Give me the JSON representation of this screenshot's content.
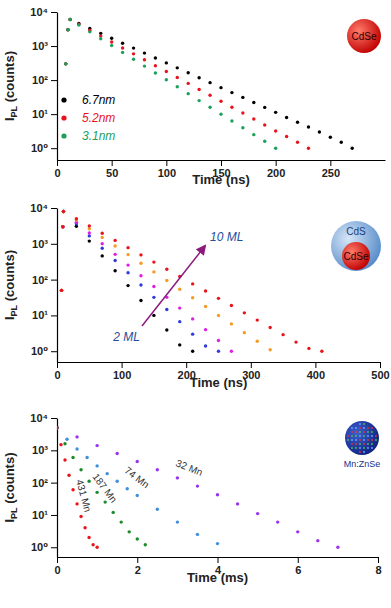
{
  "chart_data": [
    {
      "type": "scatter",
      "log": "y",
      "marker": "circle",
      "legend": "lower left",
      "xlabel": "Time (ns)",
      "ylabel": "IPL (counts)",
      "inset_labels": [
        "CdSe"
      ],
      "xlim": [
        0,
        300
      ],
      "xticks": [
        0,
        50,
        100,
        150,
        200,
        250
      ],
      "ylim": [
        0.45,
        10000
      ],
      "yticks": [
        {
          "value": 1,
          "label": "10⁰"
        },
        {
          "value": 10,
          "label": "10¹"
        },
        {
          "value": 100,
          "label": "10²"
        },
        {
          "value": 1000,
          "label": "10³"
        },
        {
          "value": 10000,
          "label": "10⁴"
        }
      ],
      "series": [
        {
          "name": "6.7nm",
          "color": "#000000",
          "x": [
            8,
            10,
            12,
            20,
            30,
            40,
            50,
            60,
            70,
            80,
            90,
            100,
            110,
            120,
            130,
            140,
            150,
            160,
            170,
            180,
            190,
            200,
            210,
            220,
            230,
            240,
            250,
            260,
            270
          ],
          "values": [
            300,
            3000,
            6000,
            4600,
            3290,
            2360,
            1690,
            1210,
            870,
            620,
            445,
            320,
            229,
            164,
            117,
            84,
            60,
            43,
            31,
            22,
            15.8,
            11.3,
            8,
            5.8,
            4.2,
            3,
            2.1,
            1.5,
            1
          ]
        },
        {
          "name": "5.2nm",
          "color": "#e8141c",
          "x": [
            8,
            10,
            12,
            20,
            30,
            40,
            50,
            60,
            70,
            80,
            90,
            100,
            110,
            120,
            130,
            140,
            150,
            160,
            170,
            180,
            190,
            200,
            210,
            220,
            230
          ],
          "values": [
            300,
            3000,
            6000,
            4360,
            2920,
            1960,
            1310,
            880,
            590,
            395,
            265,
            178,
            119,
            80,
            53,
            36,
            24,
            16,
            10.8,
            7.2,
            4.8,
            3.2,
            2.2,
            1.5,
            1
          ]
        },
        {
          "name": "3.1nm",
          "color": "#1aa05a",
          "x": [
            8,
            10,
            12,
            20,
            30,
            40,
            50,
            60,
            70,
            80,
            90,
            100,
            110,
            120,
            130,
            140,
            150,
            160,
            170,
            180,
            190,
            200
          ],
          "values": [
            300,
            3000,
            6000,
            4140,
            2610,
            1640,
            1035,
            650,
            410,
            258,
            162,
            102,
            64,
            40,
            25,
            16,
            10,
            6.3,
            4,
            2.5,
            1.6,
            1
          ]
        }
      ]
    },
    {
      "type": "scatter",
      "log": "y",
      "marker": "circle",
      "xlabel": "Time (ns)",
      "ylabel": "IPL (counts)",
      "inset_labels": [
        "CdS",
        "CdSe"
      ],
      "annotations": [
        "2 ML",
        "10 ML"
      ],
      "xlim": [
        0,
        500
      ],
      "xticks": [
        0,
        100,
        200,
        300,
        400,
        500
      ],
      "ylim": [
        0.5,
        10000
      ],
      "yticks": [
        {
          "value": 1,
          "label": "10⁰"
        },
        {
          "value": 10,
          "label": "10¹"
        },
        {
          "value": 100,
          "label": "10²"
        },
        {
          "value": 1000,
          "label": "10³"
        },
        {
          "value": 10000,
          "label": "10⁴"
        }
      ],
      "series": [
        {
          "color": "#000000",
          "x": [
            7,
            9,
            10,
            30,
            50,
            70,
            90,
            110,
            130,
            150,
            170,
            190,
            210
          ],
          "values": [
            50,
            3000,
            8000,
            3090,
            1190,
            459,
            177,
            68,
            26,
            10,
            3.9,
            1.5,
            1
          ]
        },
        {
          "color": "#2e3cdc",
          "x": [
            7,
            9,
            10,
            30,
            50,
            70,
            90,
            110,
            130,
            150,
            170,
            190,
            210,
            230,
            250
          ],
          "values": [
            50,
            3000,
            8000,
            3640,
            1660,
            755,
            343,
            156,
            71,
            32,
            14.7,
            6.7,
            3,
            1.4,
            1
          ]
        },
        {
          "color": "#e020e0",
          "x": [
            7,
            9,
            10,
            30,
            50,
            70,
            90,
            110,
            130,
            150,
            170,
            190,
            210,
            230,
            250,
            270
          ],
          "values": [
            50,
            3000,
            8000,
            4010,
            2010,
            1010,
            507,
            254,
            128,
            64,
            32,
            16,
            8,
            4,
            2,
            1
          ]
        },
        {
          "color": "#f59a23",
          "x": [
            7,
            9,
            10,
            30,
            50,
            70,
            90,
            110,
            130,
            150,
            170,
            190,
            210,
            230,
            250,
            270,
            290,
            310,
            330
          ],
          "values": [
            50,
            3000,
            8000,
            4590,
            2640,
            1510,
            870,
            500,
            286,
            164,
            94,
            54,
            31,
            17.7,
            10,
            5.8,
            3.3,
            1.9,
            1.1
          ]
        },
        {
          "color": "#e8141c",
          "x": [
            7,
            9,
            10,
            30,
            50,
            70,
            90,
            110,
            130,
            150,
            170,
            190,
            210,
            230,
            250,
            270,
            290,
            310,
            330,
            350,
            370,
            390,
            410
          ],
          "values": [
            50,
            3000,
            8000,
            5020,
            3160,
            1980,
            1245,
            780,
            490,
            308,
            194,
            122,
            76,
            48,
            30,
            19,
            11.8,
            7.4,
            4.6,
            2.9,
            1.8,
            1.2,
            1
          ]
        }
      ]
    },
    {
      "type": "scatter",
      "log": "y",
      "marker": "circle",
      "xlabel": "Time (ms)",
      "ylabel": "IPL (counts)",
      "inset_labels": [
        "Mn:ZnSe"
      ],
      "xlim": [
        0,
        8
      ],
      "xticks": [
        0,
        2,
        4,
        6,
        8
      ],
      "ylim": [
        0.5,
        10000
      ],
      "yticks": [
        {
          "value": 1,
          "label": "10⁰"
        },
        {
          "value": 10,
          "label": "10¹"
        },
        {
          "value": 100,
          "label": "10²"
        },
        {
          "value": 1000,
          "label": "10³"
        },
        {
          "value": 10000,
          "label": "10⁴"
        }
      ],
      "series": [
        {
          "name": "32 Mn",
          "color": "#9933ee",
          "x": [
            0,
            0.5,
            1,
            1.5,
            2,
            2.5,
            3,
            3.5,
            4,
            4.5,
            5,
            5.5,
            6,
            6.5,
            7
          ],
          "values": [
            5000,
            2600,
            1400,
            800,
            450,
            250,
            140,
            78,
            42,
            22,
            11,
            6,
            3,
            1.6,
            1
          ]
        },
        {
          "name": "74 Mn",
          "color": "#3f8fdc",
          "x": [
            0,
            0.25,
            0.5,
            0.75,
            1,
            1.25,
            1.5,
            1.75,
            2,
            2.5,
            3,
            3.5,
            4
          ],
          "values": [
            5000,
            2200,
            1100,
            600,
            330,
            190,
            110,
            65,
            40,
            15,
            6,
            2.5,
            1.3
          ]
        },
        {
          "name": "187 Mn",
          "color": "#1a8a2a",
          "x": [
            0,
            0.2,
            0.4,
            0.6,
            0.8,
            1,
            1.2,
            1.4,
            1.6,
            1.8,
            2,
            2.2
          ],
          "values": [
            5000,
            1600,
            600,
            250,
            110,
            50,
            25,
            12,
            6,
            3,
            1.8,
            1.2
          ]
        },
        {
          "name": "431 Mn",
          "color": "#e8141c",
          "x": [
            0,
            0.1,
            0.2,
            0.3,
            0.4,
            0.5,
            0.6,
            0.7,
            0.8,
            0.9,
            1
          ],
          "values": [
            5000,
            1500,
            500,
            170,
            60,
            22,
            9,
            4,
            2,
            1.2,
            1
          ]
        }
      ]
    }
  ]
}
